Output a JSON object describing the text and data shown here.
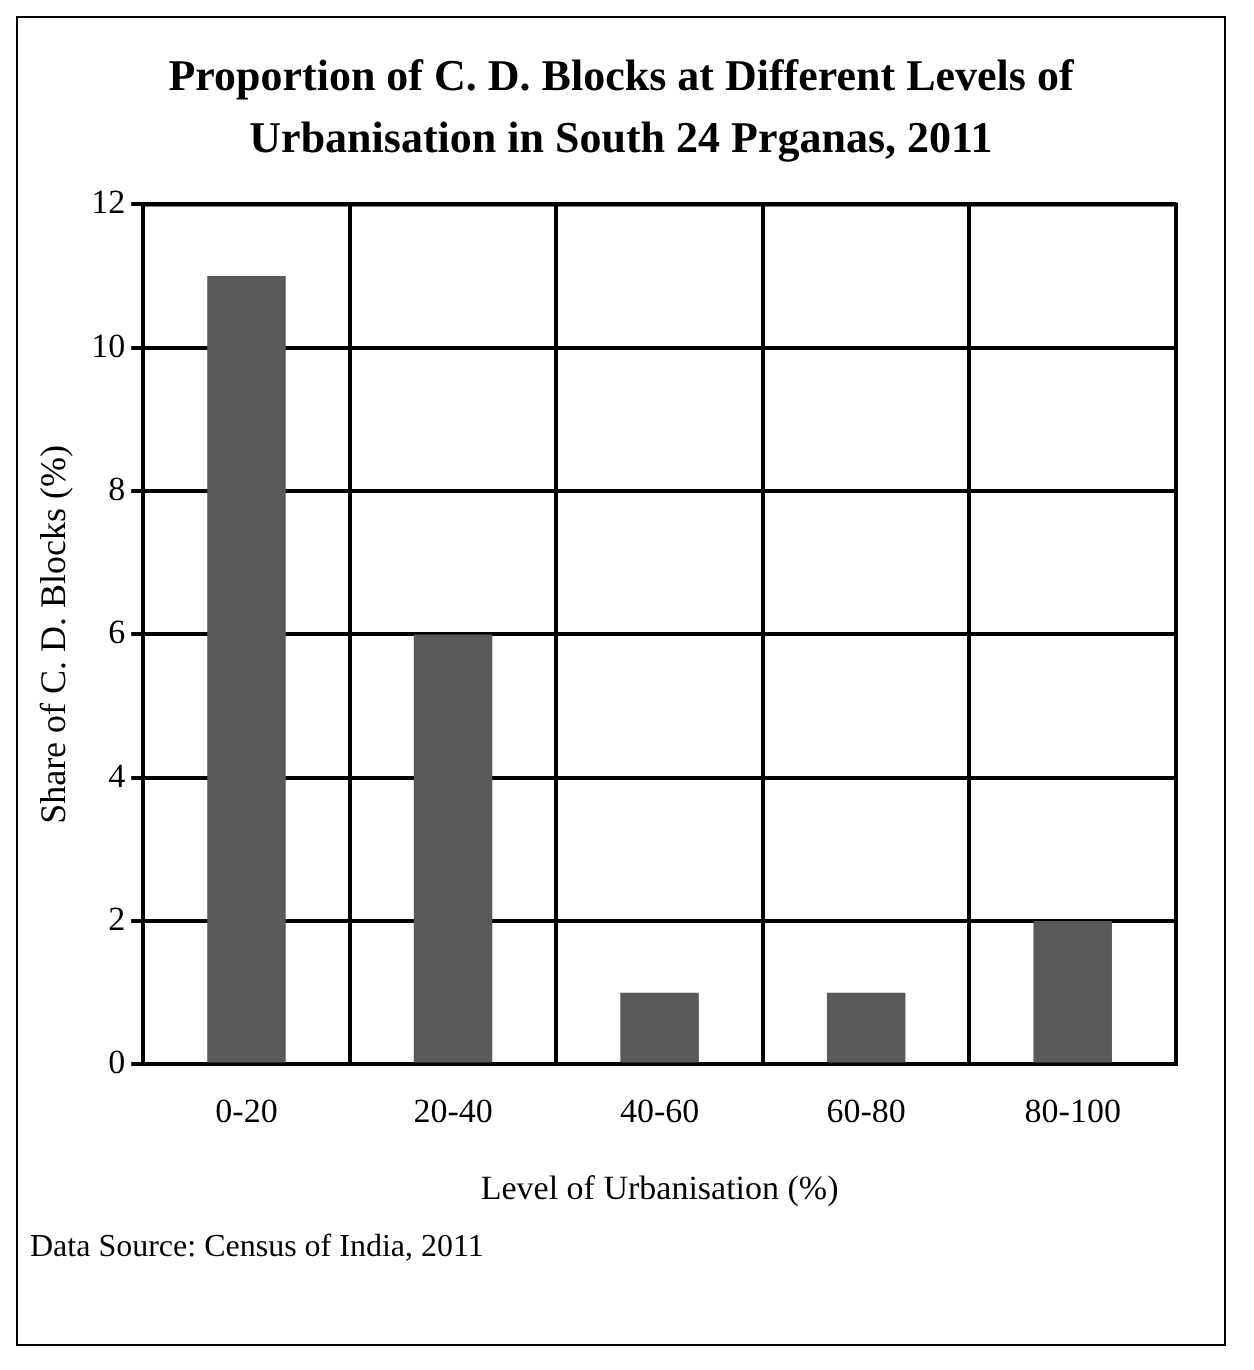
{
  "chart_data": {
    "type": "bar",
    "title": "Proportion of C. D. Blocks at Different Levels of Urbanisation in South 24 Prganas, 2011",
    "xlabel": "Level of Urbanisation (%)",
    "ylabel": "Share of C. D. Blocks (%)",
    "categories": [
      "0-20",
      "20-40",
      "40-60",
      "60-80",
      "80-100"
    ],
    "values": [
      11,
      6,
      1,
      1,
      2
    ],
    "color": "#595959",
    "ylim": [
      0,
      12
    ],
    "yticks": [
      0,
      2,
      4,
      6,
      8,
      10,
      12
    ],
    "grid": true,
    "annotations": [
      "Data Source: Census of India, 2011"
    ]
  }
}
